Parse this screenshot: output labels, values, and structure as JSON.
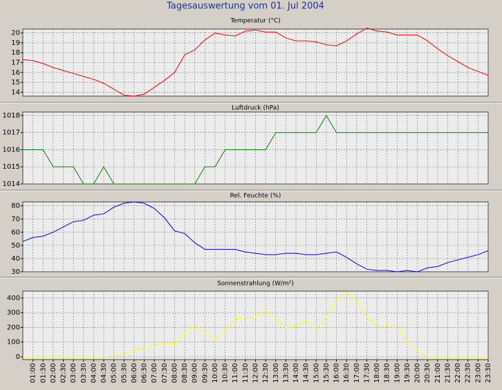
{
  "title": "Tagesauswertung vom 01. Jul 2004",
  "chart_data": [
    {
      "type": "line",
      "title": "Temperatur (°C)",
      "color": "#ff0000",
      "grid": true,
      "ylim": [
        13.6,
        20.4
      ],
      "yticks": [
        14,
        15,
        16,
        17,
        18,
        19,
        20
      ],
      "values": [
        17.3,
        17.2,
        16.9,
        16.5,
        16.2,
        15.9,
        15.6,
        15.3,
        14.9,
        14.3,
        13.7,
        13.6,
        13.8,
        14.5,
        15.2,
        16.0,
        17.8,
        18.3,
        19.3,
        20.0,
        19.8,
        19.7,
        20.2,
        20.3,
        20.1,
        20.1,
        19.5,
        19.2,
        19.2,
        19.1,
        18.8,
        18.7,
        19.2,
        19.9,
        20.5,
        20.2,
        20.1,
        19.8,
        19.8,
        19.8,
        19.2,
        18.4,
        17.7,
        17.1,
        16.5,
        16.1,
        15.7
      ]
    },
    {
      "type": "line",
      "title": "Luftdruck (hPa)",
      "color": "#008000",
      "grid": true,
      "ylim": [
        1014,
        1018.2
      ],
      "yticks": [
        1014,
        1015,
        1016,
        1017,
        1018
      ],
      "values": [
        1016,
        1016,
        1016,
        1015,
        1015,
        1015,
        1014,
        1014,
        1015,
        1014,
        1014,
        1014,
        1014,
        1014,
        1014,
        1014,
        1014,
        1014,
        1015,
        1015,
        1016,
        1016,
        1016,
        1016,
        1016,
        1017,
        1017,
        1017,
        1017,
        1017,
        1018,
        1017,
        1017,
        1017,
        1017,
        1017,
        1017,
        1017,
        1017,
        1017,
        1017,
        1017,
        1017,
        1017,
        1017,
        1017,
        1017
      ]
    },
    {
      "type": "line",
      "title": "Rel. Feuchte (%)",
      "color": "#0000ff",
      "grid": true,
      "ylim": [
        30,
        83
      ],
      "yticks": [
        30,
        40,
        50,
        60,
        70,
        80
      ],
      "values": [
        53,
        56,
        57,
        60,
        64,
        68,
        69,
        73,
        74,
        79,
        82,
        83,
        82,
        78,
        71,
        61,
        59,
        52,
        47,
        47,
        47,
        47,
        45,
        44,
        43,
        43,
        44,
        44,
        43,
        43,
        44,
        45,
        41,
        36,
        32,
        31,
        31,
        30,
        31,
        30,
        33,
        34,
        37,
        39,
        41,
        43,
        46
      ]
    },
    {
      "type": "line",
      "title": "Sonnenstrahlung (W/m²)",
      "color": "#ffff00",
      "grid": true,
      "ylim": [
        -19,
        447
      ],
      "yticks": [
        0,
        100,
        200,
        300,
        400
      ],
      "categories": [
        null,
        "01:00",
        "01:30",
        "02:00",
        "02:30",
        "03:00",
        "03:30",
        "04:00",
        "04:30",
        "05:00",
        "05:30",
        "06:00",
        "06:30",
        "07:00",
        "07:30",
        "08:00",
        "08:30",
        "09:00",
        "09:30",
        "10:00",
        "10:30",
        "11:00",
        "11:30",
        "12:00",
        "12:30",
        "13:00",
        "13:30",
        "14:00",
        "14:30",
        "15:00",
        "15:30",
        "16:00",
        "16:30",
        "17:00",
        "17:30",
        "18:00",
        "18:30",
        "19:00",
        "19:30",
        "20:00",
        "20:30",
        "21:00",
        "21:30",
        "22:00",
        "22:30",
        "23:00",
        "23:30"
      ],
      "values": [
        0,
        0,
        0,
        0,
        0,
        0,
        0,
        0,
        0,
        5,
        20,
        40,
        60,
        80,
        95,
        90,
        160,
        210,
        160,
        120,
        180,
        260,
        265,
        270,
        315,
        260,
        200,
        205,
        250,
        190,
        270,
        390,
        440,
        380,
        270,
        210,
        205,
        210,
        100,
        40,
        0,
        0,
        0,
        0,
        0,
        0,
        0
      ]
    }
  ]
}
